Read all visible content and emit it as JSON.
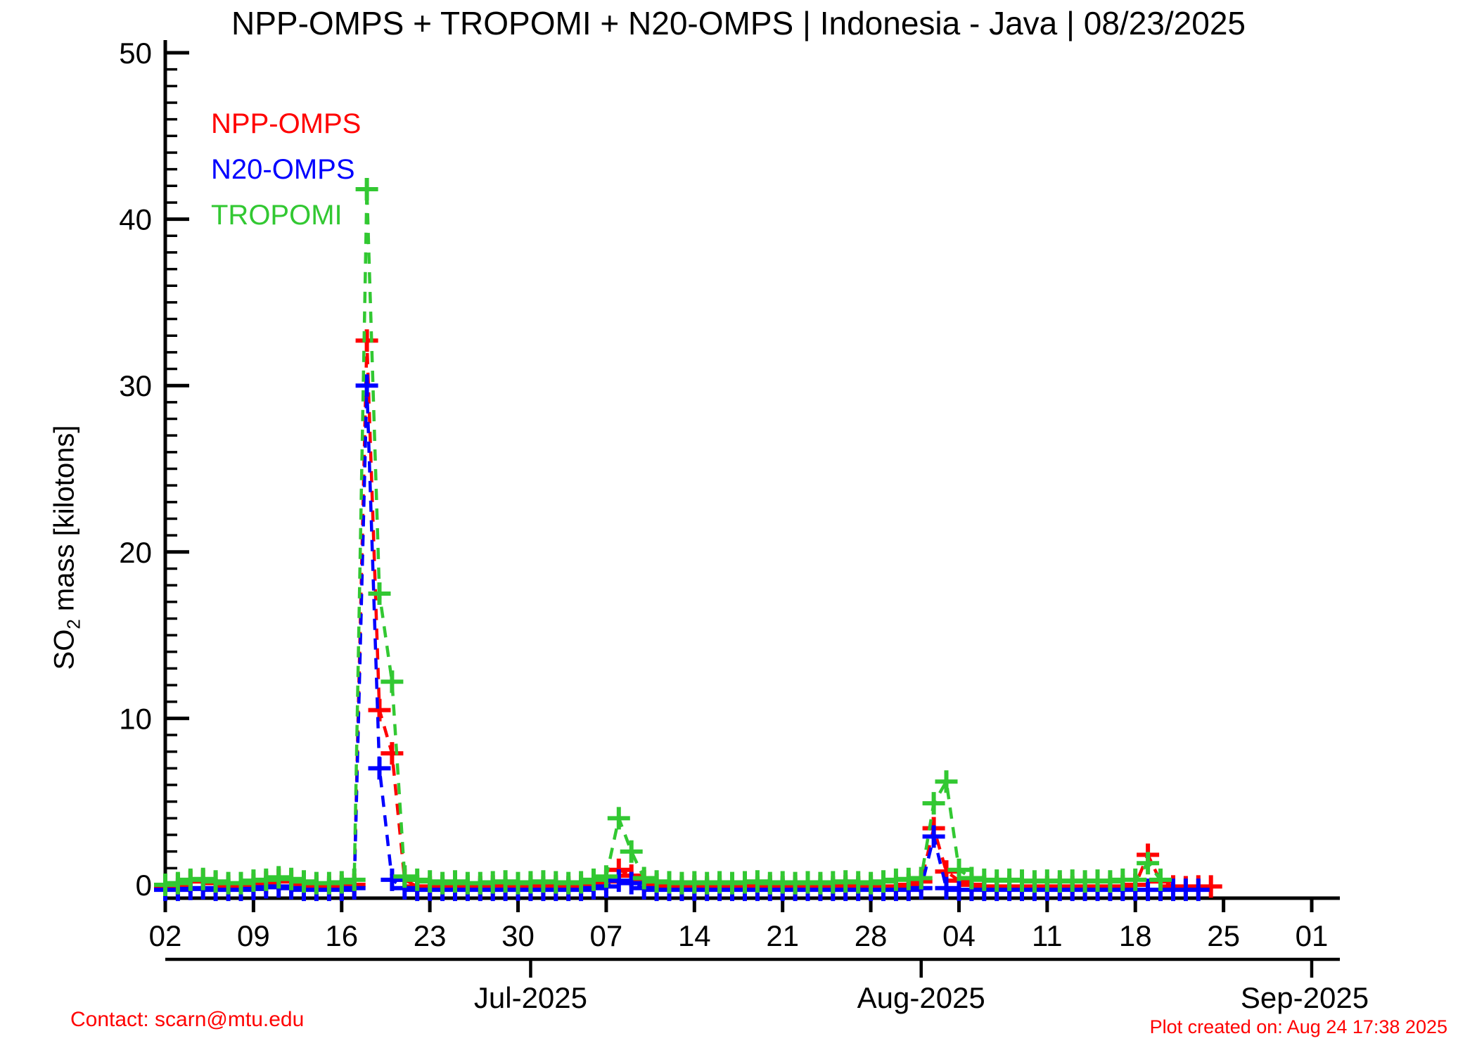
{
  "title": "NPP-OMPS + TROPOMI + N20-OMPS | Indonesia - Java | 08/23/2025",
  "legend": [
    {
      "label": "NPP-OMPS",
      "color": "#ff0000"
    },
    {
      "label": "N20-OMPS",
      "color": "#0000ff"
    },
    {
      "label": "TROPOMI",
      "color": "#32c832"
    }
  ],
  "ylabel_parts": {
    "pre": "SO",
    "sub": "2",
    "post": " mass [kilotons]"
  },
  "footer": {
    "contact": "Contact: scarn@mtu.edu",
    "created": "Plot created on: Aug 24 17:38 2025",
    "color": "#ff0000"
  },
  "chart_data": {
    "type": "line",
    "title": "NPP-OMPS + TROPOMI + N20-OMPS | Indonesia - Java | 08/23/2025",
    "xlabel": "",
    "ylabel": "SO2 mass [kilotons]",
    "ylim": [
      0,
      50
    ],
    "y_major_ticks": [
      0,
      10,
      20,
      30,
      40,
      50
    ],
    "y_minor_step": 1,
    "grid": false,
    "legend_position": "upper-left-text-only",
    "marker": "plus",
    "line_style": "dashed",
    "x_start_date": "2025-06-02",
    "x_end_date": "2025-09-01",
    "x_tick_days": [
      0,
      7,
      14,
      21,
      28,
      35,
      42,
      49,
      56,
      63,
      70,
      77,
      84,
      91
    ],
    "x_tick_labels": [
      "02",
      "09",
      "16",
      "23",
      "30",
      "07",
      "14",
      "21",
      "28",
      "04",
      "11",
      "18",
      "25",
      "01"
    ],
    "month_ticks": [
      {
        "day": 29,
        "label": "Jul-2025"
      },
      {
        "day": 60,
        "label": "Aug-2025"
      },
      {
        "day": 91,
        "label": "Sep-2025"
      }
    ],
    "series": [
      {
        "name": "NPP-OMPS",
        "color": "#ff0000",
        "points": [
          [
            0,
            -0.1
          ],
          [
            1,
            0
          ],
          [
            2,
            0.2
          ],
          [
            3,
            0.25
          ],
          [
            4,
            0.1
          ],
          [
            5,
            -0.1
          ],
          [
            6,
            -0.1
          ],
          [
            7,
            0
          ],
          [
            8,
            0.15
          ],
          [
            9,
            0.3
          ],
          [
            10,
            0.2
          ],
          [
            11,
            0
          ],
          [
            12,
            -0.1
          ],
          [
            13,
            -0.15
          ],
          [
            14,
            -0.1
          ],
          [
            15,
            0
          ],
          [
            16,
            32.7
          ],
          [
            17,
            10.5
          ],
          [
            18,
            7.9
          ],
          [
            19,
            0.3
          ],
          [
            20,
            -0.1
          ],
          [
            21,
            -0.15
          ],
          [
            22,
            -0.1
          ],
          [
            23,
            -0.15
          ],
          [
            24,
            -0.1
          ],
          [
            25,
            -0.15
          ],
          [
            26,
            -0.1
          ],
          [
            27,
            -0.15
          ],
          [
            28,
            -0.1
          ],
          [
            29,
            -0.1
          ],
          [
            30,
            -0.15
          ],
          [
            31,
            -0.1
          ],
          [
            32,
            -0.15
          ],
          [
            33,
            -0.1
          ],
          [
            34,
            0
          ],
          [
            35,
            0.2
          ],
          [
            36,
            0.9
          ],
          [
            37,
            0.55
          ],
          [
            38,
            0.2
          ],
          [
            39,
            0
          ],
          [
            40,
            -0.1
          ],
          [
            41,
            -0.15
          ],
          [
            42,
            -0.1
          ],
          [
            43,
            -0.15
          ],
          [
            44,
            -0.1
          ],
          [
            45,
            -0.15
          ],
          [
            46,
            -0.1
          ],
          [
            47,
            -0.15
          ],
          [
            48,
            -0.1
          ],
          [
            49,
            -0.15
          ],
          [
            50,
            -0.1
          ],
          [
            51,
            -0.15
          ],
          [
            52,
            -0.1
          ],
          [
            53,
            -0.15
          ],
          [
            54,
            -0.1
          ],
          [
            55,
            -0.15
          ],
          [
            56,
            -0.1
          ],
          [
            57,
            -0.15
          ],
          [
            58,
            -0.1
          ],
          [
            59,
            0
          ],
          [
            60,
            0.2
          ],
          [
            61,
            3.4
          ],
          [
            62,
            0.8
          ],
          [
            63,
            0.25
          ],
          [
            64,
            0
          ],
          [
            65,
            -0.1
          ],
          [
            66,
            -0.15
          ],
          [
            67,
            -0.1
          ],
          [
            68,
            -0.15
          ],
          [
            69,
            -0.1
          ],
          [
            70,
            -0.15
          ],
          [
            71,
            -0.1
          ],
          [
            72,
            -0.15
          ],
          [
            73,
            -0.1
          ],
          [
            74,
            -0.15
          ],
          [
            75,
            -0.1
          ],
          [
            76,
            -0.1
          ],
          [
            77,
            0
          ],
          [
            78,
            1.8
          ],
          [
            79,
            0.2
          ],
          [
            80,
            -0.1
          ],
          [
            81,
            -0.15
          ],
          [
            82,
            -0.1
          ],
          [
            83,
            -0.1
          ]
        ]
      },
      {
        "name": "N20-OMPS",
        "color": "#0000ff",
        "points": [
          [
            0,
            -0.3
          ],
          [
            1,
            -0.3
          ],
          [
            2,
            -0.25
          ],
          [
            3,
            -0.2
          ],
          [
            4,
            -0.3
          ],
          [
            5,
            -0.3
          ],
          [
            6,
            -0.3
          ],
          [
            7,
            -0.25
          ],
          [
            8,
            -0.15
          ],
          [
            9,
            -0.1
          ],
          [
            10,
            -0.2
          ],
          [
            11,
            -0.3
          ],
          [
            12,
            -0.3
          ],
          [
            13,
            -0.3
          ],
          [
            14,
            -0.3
          ],
          [
            15,
            -0.2
          ],
          [
            16,
            30
          ],
          [
            17,
            7
          ],
          [
            18,
            0.3
          ],
          [
            19,
            -0.2
          ],
          [
            20,
            -0.3
          ],
          [
            21,
            -0.3
          ],
          [
            22,
            -0.3
          ],
          [
            23,
            -0.3
          ],
          [
            24,
            -0.3
          ],
          [
            25,
            -0.3
          ],
          [
            26,
            -0.3
          ],
          [
            27,
            -0.3
          ],
          [
            28,
            -0.3
          ],
          [
            29,
            -0.3
          ],
          [
            30,
            -0.3
          ],
          [
            31,
            -0.3
          ],
          [
            32,
            -0.3
          ],
          [
            33,
            -0.3
          ],
          [
            34,
            -0.2
          ],
          [
            35,
            -0.1
          ],
          [
            36,
            0.25
          ],
          [
            37,
            0.1
          ],
          [
            38,
            -0.2
          ],
          [
            39,
            -0.3
          ],
          [
            40,
            -0.3
          ],
          [
            41,
            -0.3
          ],
          [
            42,
            -0.3
          ],
          [
            43,
            -0.3
          ],
          [
            44,
            -0.3
          ],
          [
            45,
            -0.3
          ],
          [
            46,
            -0.3
          ],
          [
            47,
            -0.3
          ],
          [
            48,
            -0.3
          ],
          [
            49,
            -0.3
          ],
          [
            50,
            -0.3
          ],
          [
            51,
            -0.3
          ],
          [
            52,
            -0.3
          ],
          [
            53,
            -0.3
          ],
          [
            54,
            -0.3
          ],
          [
            55,
            -0.3
          ],
          [
            56,
            -0.3
          ],
          [
            57,
            -0.3
          ],
          [
            58,
            -0.3
          ],
          [
            59,
            -0.3
          ],
          [
            60,
            -0.2
          ],
          [
            61,
            2.9
          ],
          [
            62,
            -0.2
          ],
          [
            63,
            -0.3
          ],
          [
            64,
            -0.3
          ],
          [
            65,
            -0.3
          ],
          [
            66,
            -0.3
          ],
          [
            67,
            -0.3
          ],
          [
            68,
            -0.3
          ],
          [
            69,
            -0.3
          ],
          [
            70,
            -0.3
          ],
          [
            71,
            -0.3
          ],
          [
            72,
            -0.3
          ],
          [
            73,
            -0.3
          ],
          [
            74,
            -0.3
          ],
          [
            75,
            -0.3
          ],
          [
            76,
            -0.3
          ],
          [
            77,
            -0.3
          ],
          [
            78,
            -0.3
          ],
          [
            79,
            -0.3
          ],
          [
            80,
            -0.3
          ],
          [
            81,
            -0.3
          ],
          [
            82,
            -0.3
          ]
        ]
      },
      {
        "name": "TROPOMI",
        "color": "#32c832",
        "points": [
          [
            0,
            0
          ],
          [
            1,
            0.1
          ],
          [
            2,
            0.3
          ],
          [
            3,
            0.35
          ],
          [
            4,
            0.2
          ],
          [
            5,
            0.1
          ],
          [
            6,
            0.1
          ],
          [
            7,
            0.25
          ],
          [
            8,
            0.3
          ],
          [
            9,
            0.45
          ],
          [
            10,
            0.35
          ],
          [
            11,
            0.2
          ],
          [
            12,
            0.1
          ],
          [
            13,
            0.1
          ],
          [
            14,
            0.15
          ],
          [
            15,
            0.3
          ],
          [
            16,
            41.8
          ],
          [
            17,
            17.5
          ],
          [
            18,
            12.2
          ],
          [
            19,
            0.5
          ],
          [
            20,
            0.3
          ],
          [
            21,
            0.2
          ],
          [
            22,
            0.1
          ],
          [
            23,
            0.2
          ],
          [
            24,
            0.1
          ],
          [
            25,
            0.1
          ],
          [
            26,
            0.15
          ],
          [
            27,
            0.2
          ],
          [
            28,
            0.1
          ],
          [
            29,
            0.15
          ],
          [
            30,
            0.2
          ],
          [
            31,
            0.15
          ],
          [
            32,
            0.1
          ],
          [
            33,
            0.15
          ],
          [
            34,
            0.3
          ],
          [
            35,
            0.5
          ],
          [
            36,
            4
          ],
          [
            37,
            2
          ],
          [
            38,
            0.4
          ],
          [
            39,
            0.2
          ],
          [
            40,
            0.15
          ],
          [
            41,
            0.1
          ],
          [
            42,
            0.15
          ],
          [
            43,
            0.1
          ],
          [
            44,
            0.15
          ],
          [
            45,
            0.1
          ],
          [
            46,
            0.15
          ],
          [
            47,
            0.2
          ],
          [
            48,
            0.1
          ],
          [
            49,
            0.15
          ],
          [
            50,
            0.1
          ],
          [
            51,
            0.15
          ],
          [
            52,
            0.1
          ],
          [
            53,
            0.15
          ],
          [
            54,
            0.2
          ],
          [
            55,
            0.15
          ],
          [
            56,
            0.1
          ],
          [
            57,
            0.2
          ],
          [
            58,
            0.3
          ],
          [
            59,
            0.35
          ],
          [
            60,
            0.4
          ],
          [
            61,
            4.9
          ],
          [
            62,
            6.2
          ],
          [
            63,
            0.9
          ],
          [
            64,
            0.4
          ],
          [
            65,
            0.3
          ],
          [
            66,
            0.25
          ],
          [
            67,
            0.3
          ],
          [
            68,
            0.25
          ],
          [
            69,
            0.2
          ],
          [
            70,
            0.25
          ],
          [
            71,
            0.2
          ],
          [
            72,
            0.25
          ],
          [
            73,
            0.2
          ],
          [
            74,
            0.25
          ],
          [
            75,
            0.2
          ],
          [
            76,
            0.3
          ],
          [
            77,
            0.3
          ],
          [
            78,
            1.3
          ],
          [
            79,
            0.3
          ]
        ]
      }
    ]
  }
}
